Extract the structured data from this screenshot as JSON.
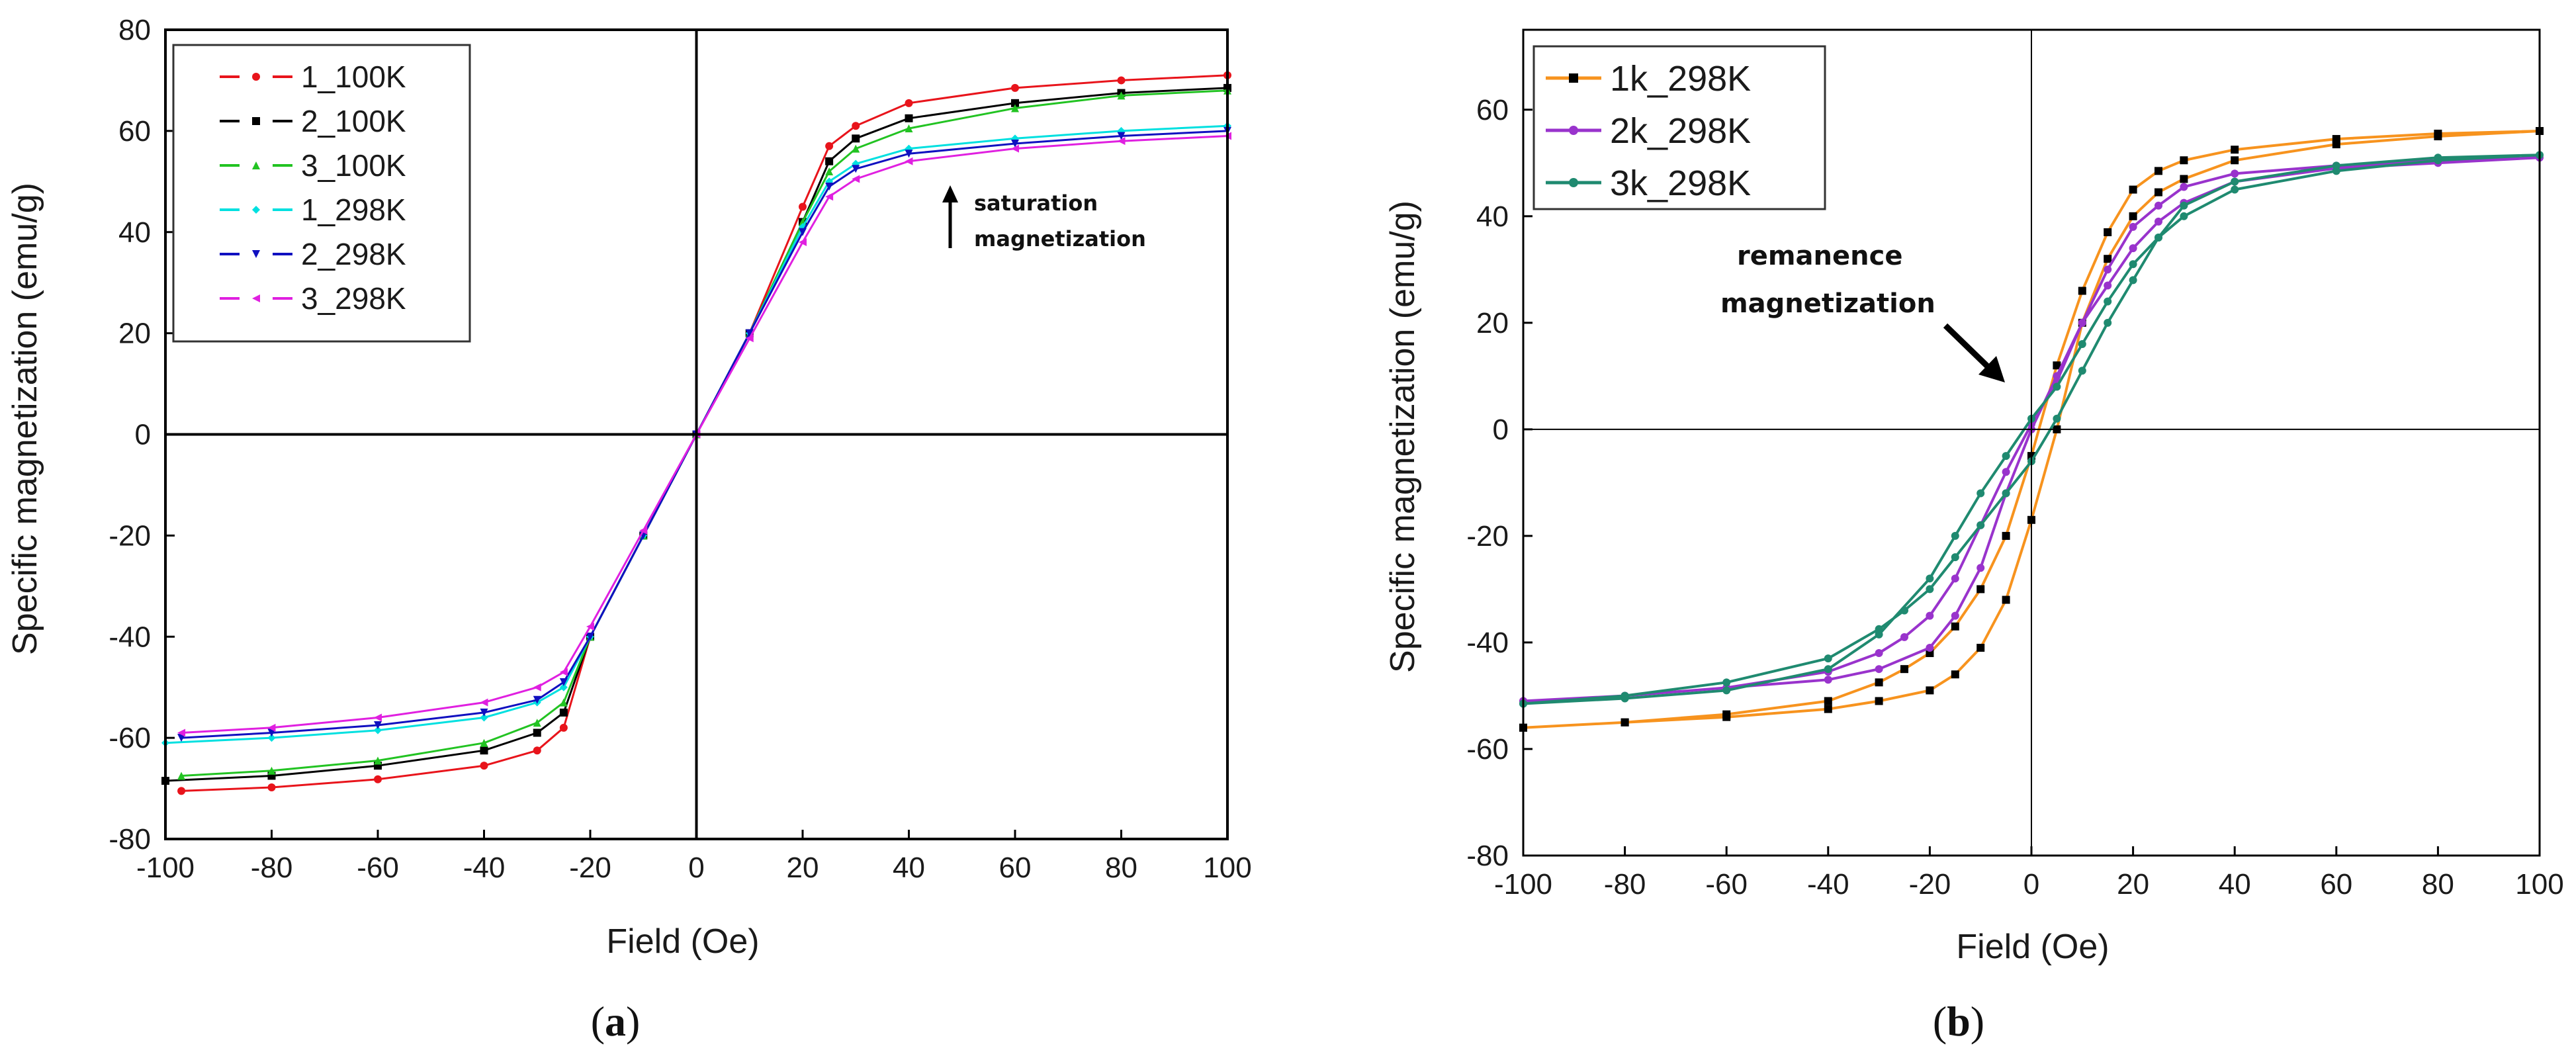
{
  "chart_data": [
    {
      "id": "a",
      "type": "line",
      "panel_label": "a",
      "title": "",
      "xlabel": "Field (Oe)",
      "ylabel": "Specific magnetization (emu/g)",
      "xlim": [
        -100,
        100
      ],
      "ylim": [
        -80,
        80
      ],
      "xticks": [
        -100,
        -80,
        -60,
        -40,
        -20,
        0,
        20,
        40,
        60,
        80,
        100
      ],
      "yticks": [
        -80,
        -60,
        -40,
        -20,
        0,
        20,
        40,
        60,
        80
      ],
      "grid": false,
      "legend_position": "top-left",
      "annotation": {
        "text_line1": "saturation",
        "text_line2": "magnetization",
        "arrow": "up"
      },
      "series": [
        {
          "name": "1_100K",
          "color": "#e8141b",
          "marker": "circle",
          "x": [
            -97,
            -80,
            -60,
            -40,
            -30,
            -25,
            -20,
            -10,
            0,
            10,
            20,
            25,
            30,
            40,
            60,
            80,
            100
          ],
          "y": [
            -70.5,
            -69.8,
            -68.2,
            -65.5,
            -62.5,
            -58,
            -40,
            -20,
            0,
            20,
            45,
            57,
            61,
            65.5,
            68.5,
            70,
            71
          ]
        },
        {
          "name": "2_100K",
          "color": "#000000",
          "marker": "square",
          "x": [
            -100,
            -80,
            -60,
            -40,
            -30,
            -25,
            -20,
            -10,
            0,
            10,
            20,
            25,
            30,
            40,
            60,
            80,
            100
          ],
          "y": [
            -68.5,
            -67.5,
            -65.5,
            -62.5,
            -59,
            -55,
            -40,
            -20,
            0,
            20,
            42,
            54,
            58.5,
            62.5,
            65.5,
            67.5,
            68.5
          ]
        },
        {
          "name": "3_100K",
          "color": "#22c322",
          "marker": "triangle",
          "x": [
            -97,
            -80,
            -60,
            -40,
            -30,
            -25,
            -20,
            -10,
            0,
            10,
            20,
            25,
            30,
            40,
            60,
            80,
            100
          ],
          "y": [
            -67.5,
            -66.5,
            -64.5,
            -61,
            -57,
            -53,
            -40,
            -20,
            0,
            20,
            42,
            52,
            56.5,
            60.5,
            64.5,
            67,
            68
          ]
        },
        {
          "name": "1_298K",
          "color": "#00e0e0",
          "marker": "diamond",
          "x": [
            -100,
            -80,
            -60,
            -40,
            -30,
            -25,
            -20,
            -10,
            0,
            10,
            20,
            25,
            30,
            40,
            60,
            80,
            100
          ],
          "y": [
            -61,
            -60,
            -58.5,
            -56,
            -53,
            -50,
            -40,
            -20,
            0,
            20,
            41,
            50,
            53.5,
            56.5,
            58.5,
            60,
            61
          ]
        },
        {
          "name": "2_298K",
          "color": "#1010c0",
          "marker": "triangle-down",
          "x": [
            -97,
            -80,
            -60,
            -40,
            -30,
            -25,
            -20,
            -10,
            0,
            10,
            20,
            25,
            30,
            40,
            60,
            80,
            100
          ],
          "y": [
            -60,
            -59,
            -57.5,
            -55,
            -52.5,
            -49,
            -40,
            -20,
            0,
            20,
            40,
            49,
            52.5,
            55.5,
            57.5,
            59,
            60
          ]
        },
        {
          "name": "3_298K",
          "color": "#e020e0",
          "marker": "triangle-left",
          "x": [
            -97,
            -80,
            -60,
            -40,
            -30,
            -25,
            -20,
            -10,
            0,
            10,
            20,
            25,
            30,
            40,
            60,
            80,
            100
          ],
          "y": [
            -59,
            -58,
            -56,
            -53,
            -50,
            -47,
            -38,
            -19,
            0,
            19,
            38,
            47,
            50.5,
            54,
            56.5,
            58,
            59
          ]
        }
      ]
    },
    {
      "id": "b",
      "type": "line",
      "panel_label": "b",
      "title": "",
      "xlabel": "Field (Oe)",
      "ylabel": "Specific magnetization (emu/g)",
      "xlim": [
        -100,
        100
      ],
      "ylim": [
        -80,
        75
      ],
      "xticks": [
        -100,
        -80,
        -60,
        -40,
        -20,
        0,
        20,
        40,
        60,
        80,
        100
      ],
      "yticks": [
        -80,
        -60,
        -40,
        -20,
        0,
        20,
        40,
        60
      ],
      "grid": false,
      "legend_position": "top-left",
      "annotation": {
        "text_line1": "remanence",
        "text_line2": "magnetization",
        "arrow": "down-right"
      },
      "series": [
        {
          "name": "1k_298K",
          "color": "#f7931e",
          "marker_color": "#000000",
          "marker": "square",
          "x": [
            -100,
            -80,
            -60,
            -40,
            -30,
            -20,
            -15,
            -10,
            -5,
            0,
            5,
            10,
            15,
            20,
            25,
            30,
            40,
            60,
            80,
            100,
            80,
            60,
            40,
            30,
            25,
            20,
            15,
            10,
            5,
            0,
            -5,
            -10,
            -15,
            -20,
            -25,
            -30,
            -40,
            -60,
            -80,
            -100
          ],
          "y": [
            -56,
            -55,
            -54,
            -52.5,
            -51,
            -49,
            -46,
            -41,
            -32,
            -17,
            0,
            20,
            32,
            40,
            44.5,
            47,
            50.5,
            53.5,
            55,
            56,
            55.5,
            54.5,
            52.5,
            50.5,
            48.5,
            45,
            37,
            26,
            12,
            -5,
            -20,
            -30,
            -37,
            -42,
            -45,
            -47.5,
            -51,
            -53.5,
            -55,
            -56
          ]
        },
        {
          "name": "2k_298K",
          "color": "#9933cc",
          "marker_color": "#9933cc",
          "marker": "circle",
          "x": [
            -100,
            -80,
            -60,
            -40,
            -30,
            -20,
            -15,
            -10,
            -5,
            0,
            5,
            10,
            15,
            20,
            25,
            30,
            40,
            60,
            80,
            100,
            80,
            60,
            40,
            30,
            25,
            20,
            15,
            10,
            5,
            0,
            -5,
            -10,
            -15,
            -20,
            -25,
            -30,
            -40,
            -60,
            -80,
            -100
          ],
          "y": [
            -51,
            -50,
            -48.5,
            -47,
            -45,
            -41,
            -35,
            -26,
            -12,
            0,
            10,
            20,
            27,
            34,
            39,
            42.5,
            46.5,
            49,
            50,
            51,
            50.5,
            49.5,
            48,
            45.5,
            42,
            38,
            30,
            20,
            9,
            1,
            -8,
            -18,
            -28,
            -35,
            -39,
            -42,
            -45.5,
            -48.5,
            -50,
            -51
          ]
        },
        {
          "name": "3k_298K",
          "color": "#1f8a70",
          "marker_color": "#1f8a70",
          "marker": "circle",
          "x": [
            -100,
            -80,
            -60,
            -40,
            -30,
            -20,
            -15,
            -10,
            -5,
            0,
            5,
            10,
            15,
            20,
            25,
            30,
            40,
            60,
            80,
            100,
            80,
            60,
            40,
            30,
            25,
            20,
            15,
            10,
            5,
            0,
            -5,
            -10,
            -15,
            -20,
            -25,
            -30,
            -40,
            -60,
            -80,
            -100
          ],
          "y": [
            -51.5,
            -50.5,
            -49,
            -45,
            -38.5,
            -28,
            -20,
            -12,
            -5,
            2,
            8,
            16,
            24,
            31,
            36,
            40,
            45,
            48.5,
            50.5,
            51.5,
            51,
            49.5,
            46.5,
            42,
            36,
            28,
            20,
            11,
            2,
            -6,
            -12,
            -18,
            -24,
            -30,
            -34,
            -37.5,
            -43,
            -47.5,
            -50,
            -51.5
          ]
        }
      ]
    }
  ]
}
